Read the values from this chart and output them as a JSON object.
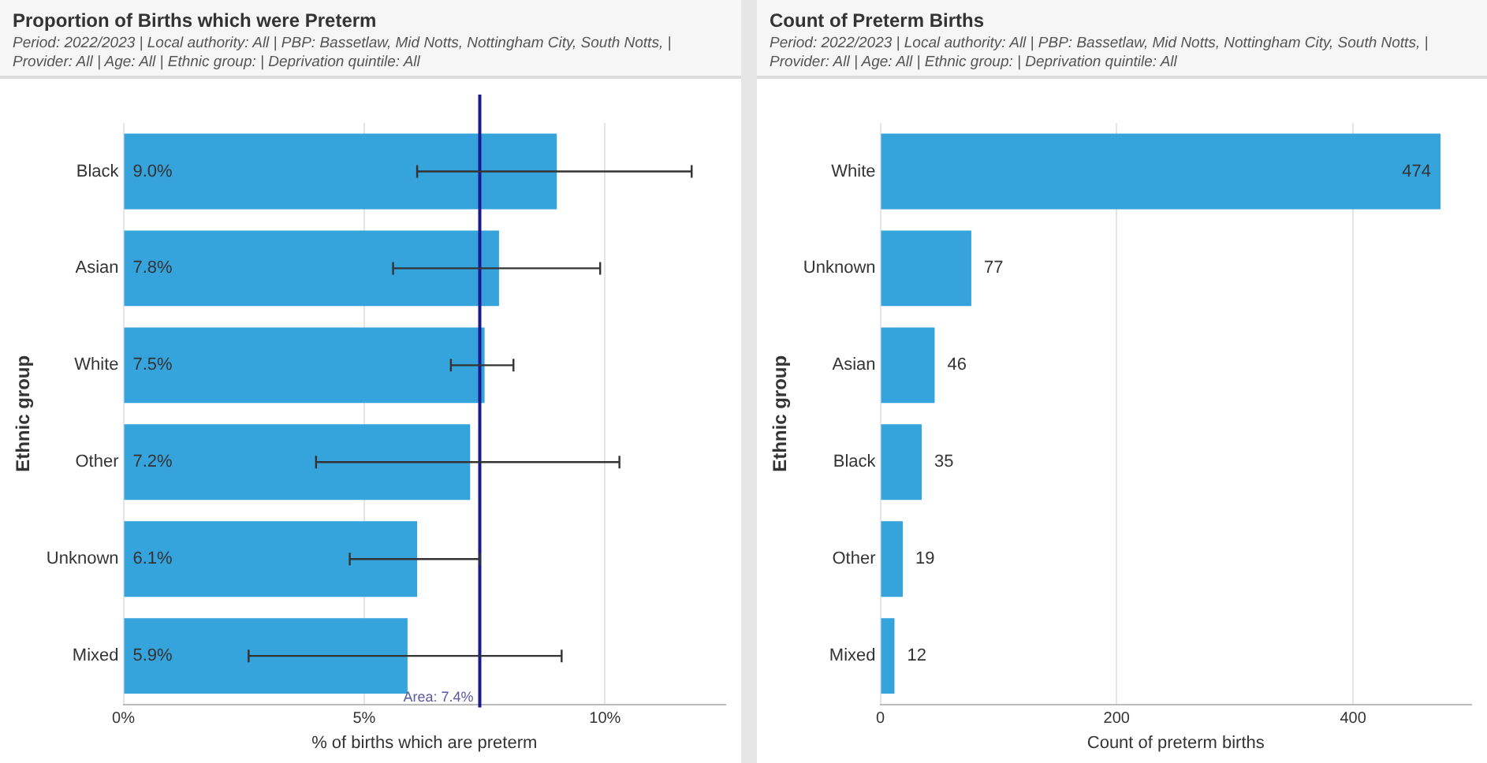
{
  "chart_data": [
    {
      "type": "bar",
      "orientation": "horizontal",
      "title": "Proportion of Births which were Preterm",
      "subtitle": "Period: 2022/2023 | Local authority: All | PBP: Bassetlaw, Mid Notts, Nottingham City, South Notts, | Provider: All | Age: All | Ethnic group: | Deprivation quintile: All",
      "xlabel": "% of births which are preterm",
      "ylabel": "Ethnic group",
      "categories": [
        "Black",
        "Asian",
        "White",
        "Other",
        "Unknown",
        "Mixed"
      ],
      "values": [
        9.0,
        7.8,
        7.5,
        7.2,
        6.1,
        5.9
      ],
      "color": "#35a3dc",
      "value_labels": [
        "9.0%",
        "7.8%",
        "7.5%",
        "7.2%",
        "6.1%",
        "5.9%"
      ],
      "errors": [
        [
          6.1,
          11.8
        ],
        [
          5.6,
          9.9
        ],
        [
          6.8,
          8.1
        ],
        [
          4.0,
          10.3
        ],
        [
          4.7,
          7.4
        ],
        [
          2.6,
          9.1
        ]
      ],
      "xlim": [
        0,
        12.5
      ],
      "xticks": [
        {
          "value": 0,
          "label": "0%"
        },
        {
          "value": 5,
          "label": "5%"
        },
        {
          "value": 10,
          "label": "10%"
        }
      ],
      "ref_lines": [
        {
          "axis": "x",
          "value": 7.4,
          "label": "Area: 7.4%",
          "color": "#1a1a8c"
        }
      ],
      "grid": "x"
    },
    {
      "type": "bar",
      "orientation": "horizontal",
      "title": "Count of Preterm Births",
      "subtitle": "Period: 2022/2023 | Local authority: All | PBP: Bassetlaw, Mid Notts, Nottingham City, South Notts, | Provider: All | Age: All | Ethnic group: | Deprivation quintile: All",
      "xlabel": "Count of preterm births",
      "ylabel": "Ethnic group",
      "categories": [
        "White",
        "Unknown",
        "Asian",
        "Black",
        "Other",
        "Mixed"
      ],
      "values": [
        474,
        77,
        46,
        35,
        19,
        12
      ],
      "color": "#35a3dc",
      "data_labels": true,
      "xlim": [
        0,
        500
      ],
      "xticks": [
        0,
        200,
        400
      ],
      "grid": "x"
    }
  ]
}
